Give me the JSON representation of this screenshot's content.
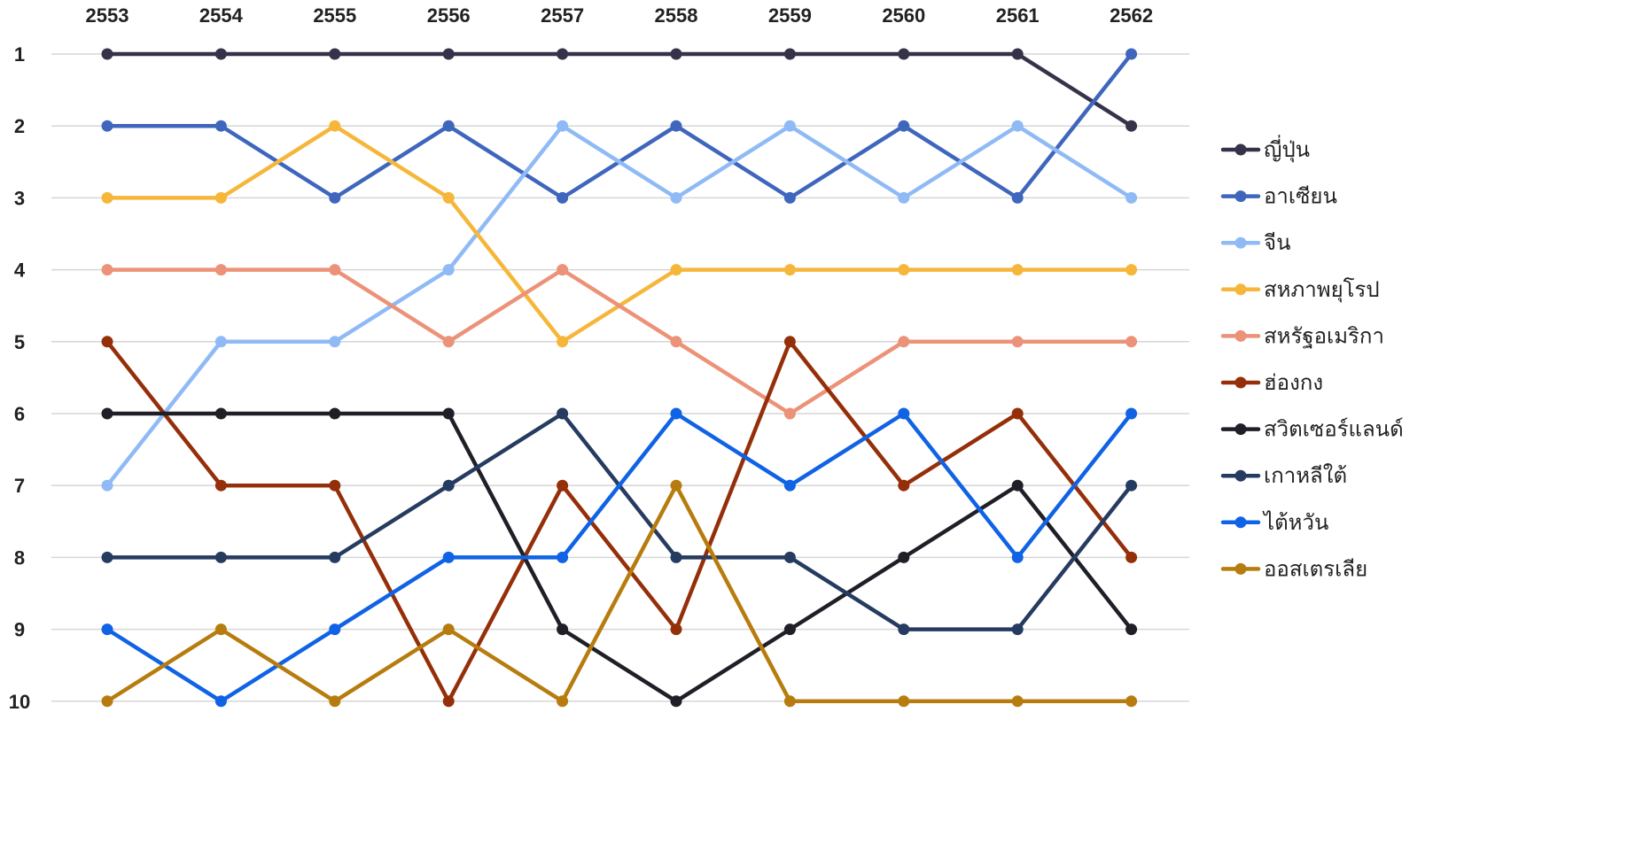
{
  "chart_data": {
    "type": "line",
    "x": [
      "2553",
      "2554",
      "2555",
      "2556",
      "2557",
      "2558",
      "2559",
      "2560",
      "2561",
      "2562"
    ],
    "y_ticks": [
      "1",
      "2",
      "3",
      "4",
      "5",
      "6",
      "7",
      "8",
      "9",
      "10"
    ],
    "ylim": [
      1,
      10
    ],
    "y_reversed": true,
    "x_axis_position": "top",
    "grid": true,
    "legend_position": "right",
    "series": [
      {
        "name": "ญี่ปุ่น",
        "color": "#36324a",
        "values": [
          1,
          1,
          1,
          1,
          1,
          1,
          1,
          1,
          1,
          2
        ]
      },
      {
        "name": "อาเซียน",
        "color": "#3f66bd",
        "values": [
          2,
          2,
          3,
          2,
          3,
          2,
          3,
          2,
          3,
          1
        ]
      },
      {
        "name": "จีน",
        "color": "#8fbaf6",
        "values": [
          7,
          5,
          5,
          4,
          2,
          3,
          2,
          3,
          2,
          3
        ]
      },
      {
        "name": "สหภาพยุโรป",
        "color": "#f6b63a",
        "values": [
          3,
          3,
          2,
          3,
          5,
          4,
          4,
          4,
          4,
          4
        ]
      },
      {
        "name": "สหรัฐอเมริกา",
        "color": "#ec9278",
        "values": [
          4,
          4,
          4,
          5,
          4,
          5,
          6,
          5,
          5,
          5
        ]
      },
      {
        "name": "ฮ่องกง",
        "color": "#952f0a",
        "values": [
          5,
          7,
          7,
          10,
          7,
          9,
          5,
          7,
          6,
          8
        ]
      },
      {
        "name": "สวิตเซอร์แลนด์",
        "color": "#1f1f27",
        "values": [
          6,
          6,
          6,
          6,
          9,
          10,
          9,
          8,
          7,
          9
        ]
      },
      {
        "name": "เกาหลีใต้",
        "color": "#263b60",
        "values": [
          8,
          8,
          8,
          7,
          6,
          8,
          8,
          9,
          9,
          7
        ]
      },
      {
        "name": "ไต้หวัน",
        "color": "#0f63e4",
        "values": [
          9,
          10,
          9,
          8,
          8,
          6,
          7,
          6,
          8,
          6
        ]
      },
      {
        "name": "ออสเตรเลีย",
        "color": "#b77c0e",
        "values": [
          10,
          9,
          10,
          9,
          10,
          7,
          10,
          10,
          10,
          10
        ]
      }
    ]
  }
}
